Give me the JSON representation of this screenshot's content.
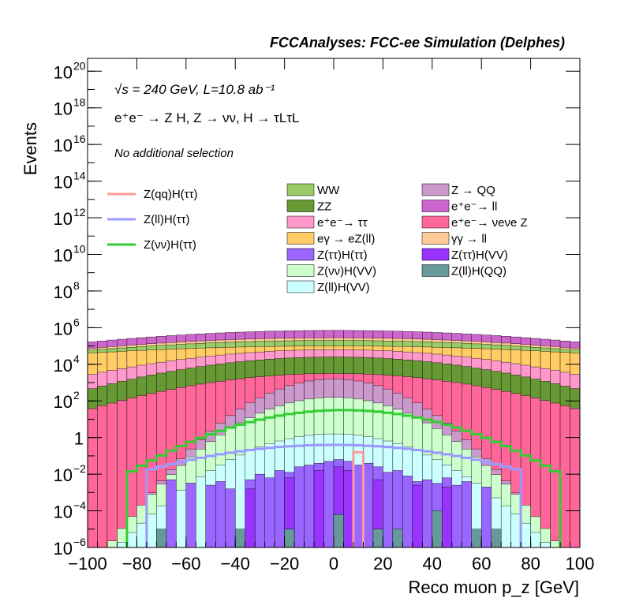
{
  "header": {
    "title": "FCCAnalyses: FCC-ee Simulation (Delphes)"
  },
  "annotations": {
    "energy": "√s = 240 GeV, L=10.8 ab⁻¹",
    "process": "e⁺e⁻ → Z H, Z → νν, H → τLτL",
    "selection": "No additional selection"
  },
  "chart_data": {
    "type": "histogram",
    "xlabel": "Reco muon p_z [GeV]",
    "ylabel": "Events",
    "xlim": [
      -100,
      100
    ],
    "ylim_log10": [
      -6,
      20.7
    ],
    "y_scale": "log",
    "bin_width": 4,
    "legend_placement": "top",
    "x_ticks": [
      "−100",
      "−80",
      "−60",
      "−40",
      "−20",
      "0",
      "20",
      "40",
      "60",
      "80",
      "100"
    ],
    "y_ticks": [
      {
        "base": "10",
        "exp": "20",
        "log": 20
      },
      {
        "base": "10",
        "exp": "18",
        "log": 18
      },
      {
        "base": "10",
        "exp": "16",
        "log": 16
      },
      {
        "base": "10",
        "exp": "14",
        "log": 14
      },
      {
        "base": "10",
        "exp": "12",
        "log": 12
      },
      {
        "base": "10",
        "exp": "10",
        "log": 10
      },
      {
        "base": "10",
        "exp": "8",
        "log": 8
      },
      {
        "base": "10",
        "exp": "6",
        "log": 6
      },
      {
        "base": "10",
        "exp": "4",
        "log": 4
      },
      {
        "base": "10",
        "exp": "2",
        "log": 2
      },
      {
        "base": "1",
        "exp": "",
        "log": 0
      },
      {
        "base": "10",
        "exp": "−2",
        "log": -2
      },
      {
        "base": "10",
        "exp": "−4",
        "log": -4
      },
      {
        "base": "10",
        "exp": "−6",
        "log": -6
      }
    ],
    "stacked_backgrounds_log10_total": [
      {
        "name": "Z(ll)H(VV)",
        "color": "#ccffff",
        "x_range": [
          -88,
          88
        ],
        "edge": -6,
        "peak": 0.2
      },
      {
        "name": "Z(νν)H(VV)",
        "color": "#ccffcc",
        "x_range": [
          -92,
          92
        ],
        "edge": -6,
        "peak": 2.2
      },
      {
        "name": "Z → QQ",
        "color": "#cc99cc",
        "x_range": [
          -90,
          90
        ],
        "edge": -6,
        "peak": 3.2
      },
      {
        "name": "e⁺e⁻→ νeνe Z",
        "color": "#ff6699",
        "x_range": [
          -100,
          100
        ],
        "edge": 1.5,
        "peak": 3.5
      },
      {
        "name": "ZZ",
        "color": "#669933",
        "x_range": [
          -100,
          100
        ],
        "edge": 2.6,
        "peak": 4.4
      },
      {
        "name": "e⁺e⁻→ ττ",
        "color": "#ff99cc",
        "x_range": [
          -100,
          100
        ],
        "edge": 3.4,
        "peak": 4.8
      },
      {
        "name": "eγ → eZ(ll)",
        "color": "#ffcc66",
        "x_range": [
          -100,
          100
        ],
        "edge": 4.6,
        "peak": 5.0
      },
      {
        "name": "WW",
        "color": "#99cc66",
        "x_range": [
          -100,
          100
        ],
        "edge": 4.75,
        "peak": 5.3
      },
      {
        "name": "γγ → ll",
        "color": "#ffcc99",
        "x_range": [
          -100,
          100
        ],
        "edge": 4.85,
        "peak": 5.45
      },
      {
        "name": "e⁺e⁻→ ll",
        "color": "#cc66cc",
        "x_range": [
          -100,
          100
        ],
        "edge": 5.2,
        "peak": 5.85
      }
    ],
    "sparse_backgrounds": [
      {
        "name": "Z(ττ)H(ττ)",
        "color": "#9966ff",
        "bins_log10": [
          {
            "x": -68,
            "v": -2.3
          },
          {
            "x": -60,
            "v": -2.5
          },
          {
            "x": -52,
            "v": -2.6
          },
          {
            "x": -48,
            "v": -2.4
          },
          {
            "x": -44,
            "v": -2.8
          },
          {
            "x": -36,
            "v": -2.3
          },
          {
            "x": -32,
            "v": -2.0
          },
          {
            "x": -28,
            "v": -2.2
          },
          {
            "x": -24,
            "v": -1.8
          },
          {
            "x": -20,
            "v": -1.9
          },
          {
            "x": -16,
            "v": -1.6
          },
          {
            "x": -12,
            "v": -1.5
          },
          {
            "x": -8,
            "v": -1.4
          },
          {
            "x": -4,
            "v": -1.3
          },
          {
            "x": 0,
            "v": -1.2
          },
          {
            "x": 4,
            "v": -1.3
          },
          {
            "x": 8,
            "v": -1.5
          },
          {
            "x": 12,
            "v": -1.4
          },
          {
            "x": 16,
            "v": -1.6
          },
          {
            "x": 20,
            "v": -1.9
          },
          {
            "x": 24,
            "v": -1.8
          },
          {
            "x": 28,
            "v": -2.1
          },
          {
            "x": 32,
            "v": -2.4
          },
          {
            "x": 36,
            "v": -2.3
          },
          {
            "x": 40,
            "v": -2.5
          },
          {
            "x": 44,
            "v": -2.2
          },
          {
            "x": 48,
            "v": -2.6
          },
          {
            "x": 52,
            "v": -2.4
          },
          {
            "x": 60,
            "v": -2.7
          }
        ]
      },
      {
        "name": "Z(ττ)H(VV)",
        "color": "#9933ff",
        "bins_log10": [
          {
            "x": -36,
            "v": -2.8
          },
          {
            "x": -20,
            "v": -2.2
          },
          {
            "x": -8,
            "v": -1.8
          },
          {
            "x": 0,
            "v": -1.6
          },
          {
            "x": 4,
            "v": -1.8
          },
          {
            "x": 16,
            "v": -2.3
          },
          {
            "x": 32,
            "v": -2.6
          },
          {
            "x": 44,
            "v": -2.7
          }
        ]
      },
      {
        "name": "Z(ll)H(QQ)",
        "color": "#669999",
        "bins_log10": [
          {
            "x": -72,
            "v": -5.0
          },
          {
            "x": -40,
            "v": -5.0
          },
          {
            "x": -20,
            "v": -5.0
          },
          {
            "x": 0,
            "v": -4.2
          },
          {
            "x": 16,
            "v": -5.0
          },
          {
            "x": 24,
            "v": -5.0
          },
          {
            "x": 40,
            "v": -4.0
          },
          {
            "x": 56,
            "v": -5.0
          },
          {
            "x": 64,
            "v": -5.0
          }
        ]
      }
    ],
    "signals": [
      {
        "name": "Z(qq)H(ττ)",
        "color": "#ff9999",
        "bins_log10": [
          {
            "x": 8,
            "v": -0.8
          }
        ]
      },
      {
        "name": "Z(ll)H(ττ)",
        "color": "#9999ff",
        "edge": -1.8,
        "peak": -0.4,
        "x_range": [
          -76,
          76
        ]
      },
      {
        "name": "Z(νν)H(ττ)",
        "color": "#33cc33",
        "edge": -2.0,
        "peak": 1.5,
        "x_range": [
          -84,
          92
        ]
      }
    ]
  },
  "legend_signals": [
    {
      "label": "Z(qq)H(ττ)",
      "color": "#ff9999"
    },
    {
      "label": "Z(ll)H(ττ)",
      "color": "#9999ff"
    },
    {
      "label": "Z(νν)H(ττ)",
      "color": "#33cc33"
    }
  ],
  "legend_col1": [
    {
      "label": "WW",
      "color": "#99cc66"
    },
    {
      "label": "ZZ",
      "color": "#669933"
    },
    {
      "label": "e⁺e⁻→ ττ",
      "color": "#ff99cc"
    },
    {
      "label": "eγ → eZ(ll)",
      "color": "#ffcc66"
    },
    {
      "label": "Z(ττ)H(ττ)",
      "color": "#9966ff"
    },
    {
      "label": "Z(νν)H(VV)",
      "color": "#ccffcc"
    },
    {
      "label": "Z(ll)H(VV)",
      "color": "#ccffff"
    }
  ],
  "legend_col2": [
    {
      "label": "Z → QQ",
      "color": "#cc99cc"
    },
    {
      "label": "e⁺e⁻→ ll",
      "color": "#cc66cc"
    },
    {
      "label": "e⁺e⁻→ νeνe Z",
      "color": "#ff6699"
    },
    {
      "label": "γγ → ll",
      "color": "#ffcc99"
    },
    {
      "label": "Z(ττ)H(VV)",
      "color": "#9933ff"
    },
    {
      "label": "Z(ll)H(QQ)",
      "color": "#669999"
    }
  ]
}
